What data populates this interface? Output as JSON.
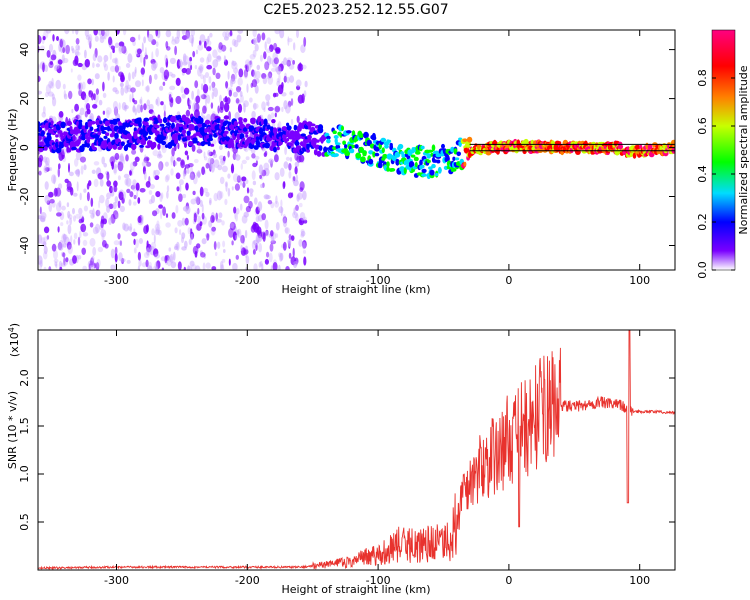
{
  "title": "C2E5.2023.252.12.55.G07",
  "chart_data": [
    {
      "type": "heatmap",
      "xlabel": "Height of straight line (km)",
      "ylabel": "Frequency (Hz)",
      "xlim": [
        -360,
        127
      ],
      "ylim": [
        -50,
        48
      ],
      "xticks": [
        -300,
        -200,
        -100,
        0,
        100
      ],
      "yticks": [
        -40,
        -20,
        0,
        20,
        40
      ],
      "xtick_labels": [
        "-300",
        "-200",
        "-100",
        "0",
        "100"
      ],
      "ytick_labels": [
        "-40",
        "-20",
        "0",
        "20",
        "40"
      ],
      "ridge": {
        "x": [
          -360,
          -320,
          -280,
          -240,
          -200,
          -160,
          -120,
          -100,
          -80,
          -60,
          -45,
          -30,
          -10,
          0,
          30,
          60,
          85,
          90,
          127
        ],
        "y": [
          4,
          5,
          6,
          7,
          6,
          4,
          2,
          -2,
          -5,
          -6,
          -4,
          -1,
          0,
          0.5,
          0,
          0,
          0,
          -2,
          0
        ]
      },
      "colorbar": {
        "label": "Normalized spectral amplitude",
        "range": [
          0,
          1
        ],
        "ticks": [
          0.0,
          0.2,
          0.4,
          0.6,
          0.8
        ],
        "tick_labels": [
          "0.0",
          "0.2",
          "0.4",
          "0.6",
          "0.8"
        ],
        "colors": [
          "#ffffff",
          "#7a00ff",
          "#0000ff",
          "#00dcff",
          "#00ff00",
          "#c8ff00",
          "#ff8000",
          "#ff0000",
          "#ff0080"
        ]
      }
    },
    {
      "type": "line",
      "xlabel": "Height of straight line (km)",
      "ylabel": "SNR (10 * v/v)",
      "multiplier_label": "(x10",
      "multiplier_exponent": "4",
      "multiplier_close": ")",
      "xlim": [
        -360,
        127
      ],
      "ylim": [
        0,
        2.5
      ],
      "xticks": [
        -300,
        -200,
        -100,
        0,
        100
      ],
      "yticks": [
        0.5,
        1.0,
        1.5,
        2.0
      ],
      "xtick_labels": [
        "-300",
        "-200",
        "-100",
        "0",
        "100"
      ],
      "ytick_labels": [
        "0.5",
        "1.0",
        "1.5",
        "2.0"
      ],
      "series": [
        {
          "color": "#e8322d",
          "x": [
            -360,
            -300,
            -250,
            -200,
            -160,
            -140,
            -120,
            -110,
            -100,
            -90,
            -80,
            -70,
            -60,
            -50,
            -45,
            -40,
            -35,
            -30,
            -25,
            -20,
            -15,
            -10,
            -5,
            0,
            5,
            10,
            15,
            20,
            25,
            30,
            40,
            50,
            60,
            70,
            80,
            85,
            88,
            90,
            92,
            95,
            100,
            110,
            127
          ],
          "y": [
            0.02,
            0.03,
            0.03,
            0.03,
            0.03,
            0.05,
            0.08,
            0.12,
            0.15,
            0.22,
            0.25,
            0.22,
            0.25,
            0.25,
            0.3,
            0.5,
            0.8,
            0.9,
            1.0,
            1.1,
            1.15,
            1.2,
            1.25,
            1.4,
            1.35,
            1.5,
            1.45,
            1.6,
            1.65,
            1.7,
            1.72,
            1.7,
            1.72,
            1.75,
            1.72,
            1.73,
            1.7,
            1.68,
            1.66,
            1.65,
            1.65,
            1.65,
            1.64
          ]
        }
      ]
    }
  ]
}
